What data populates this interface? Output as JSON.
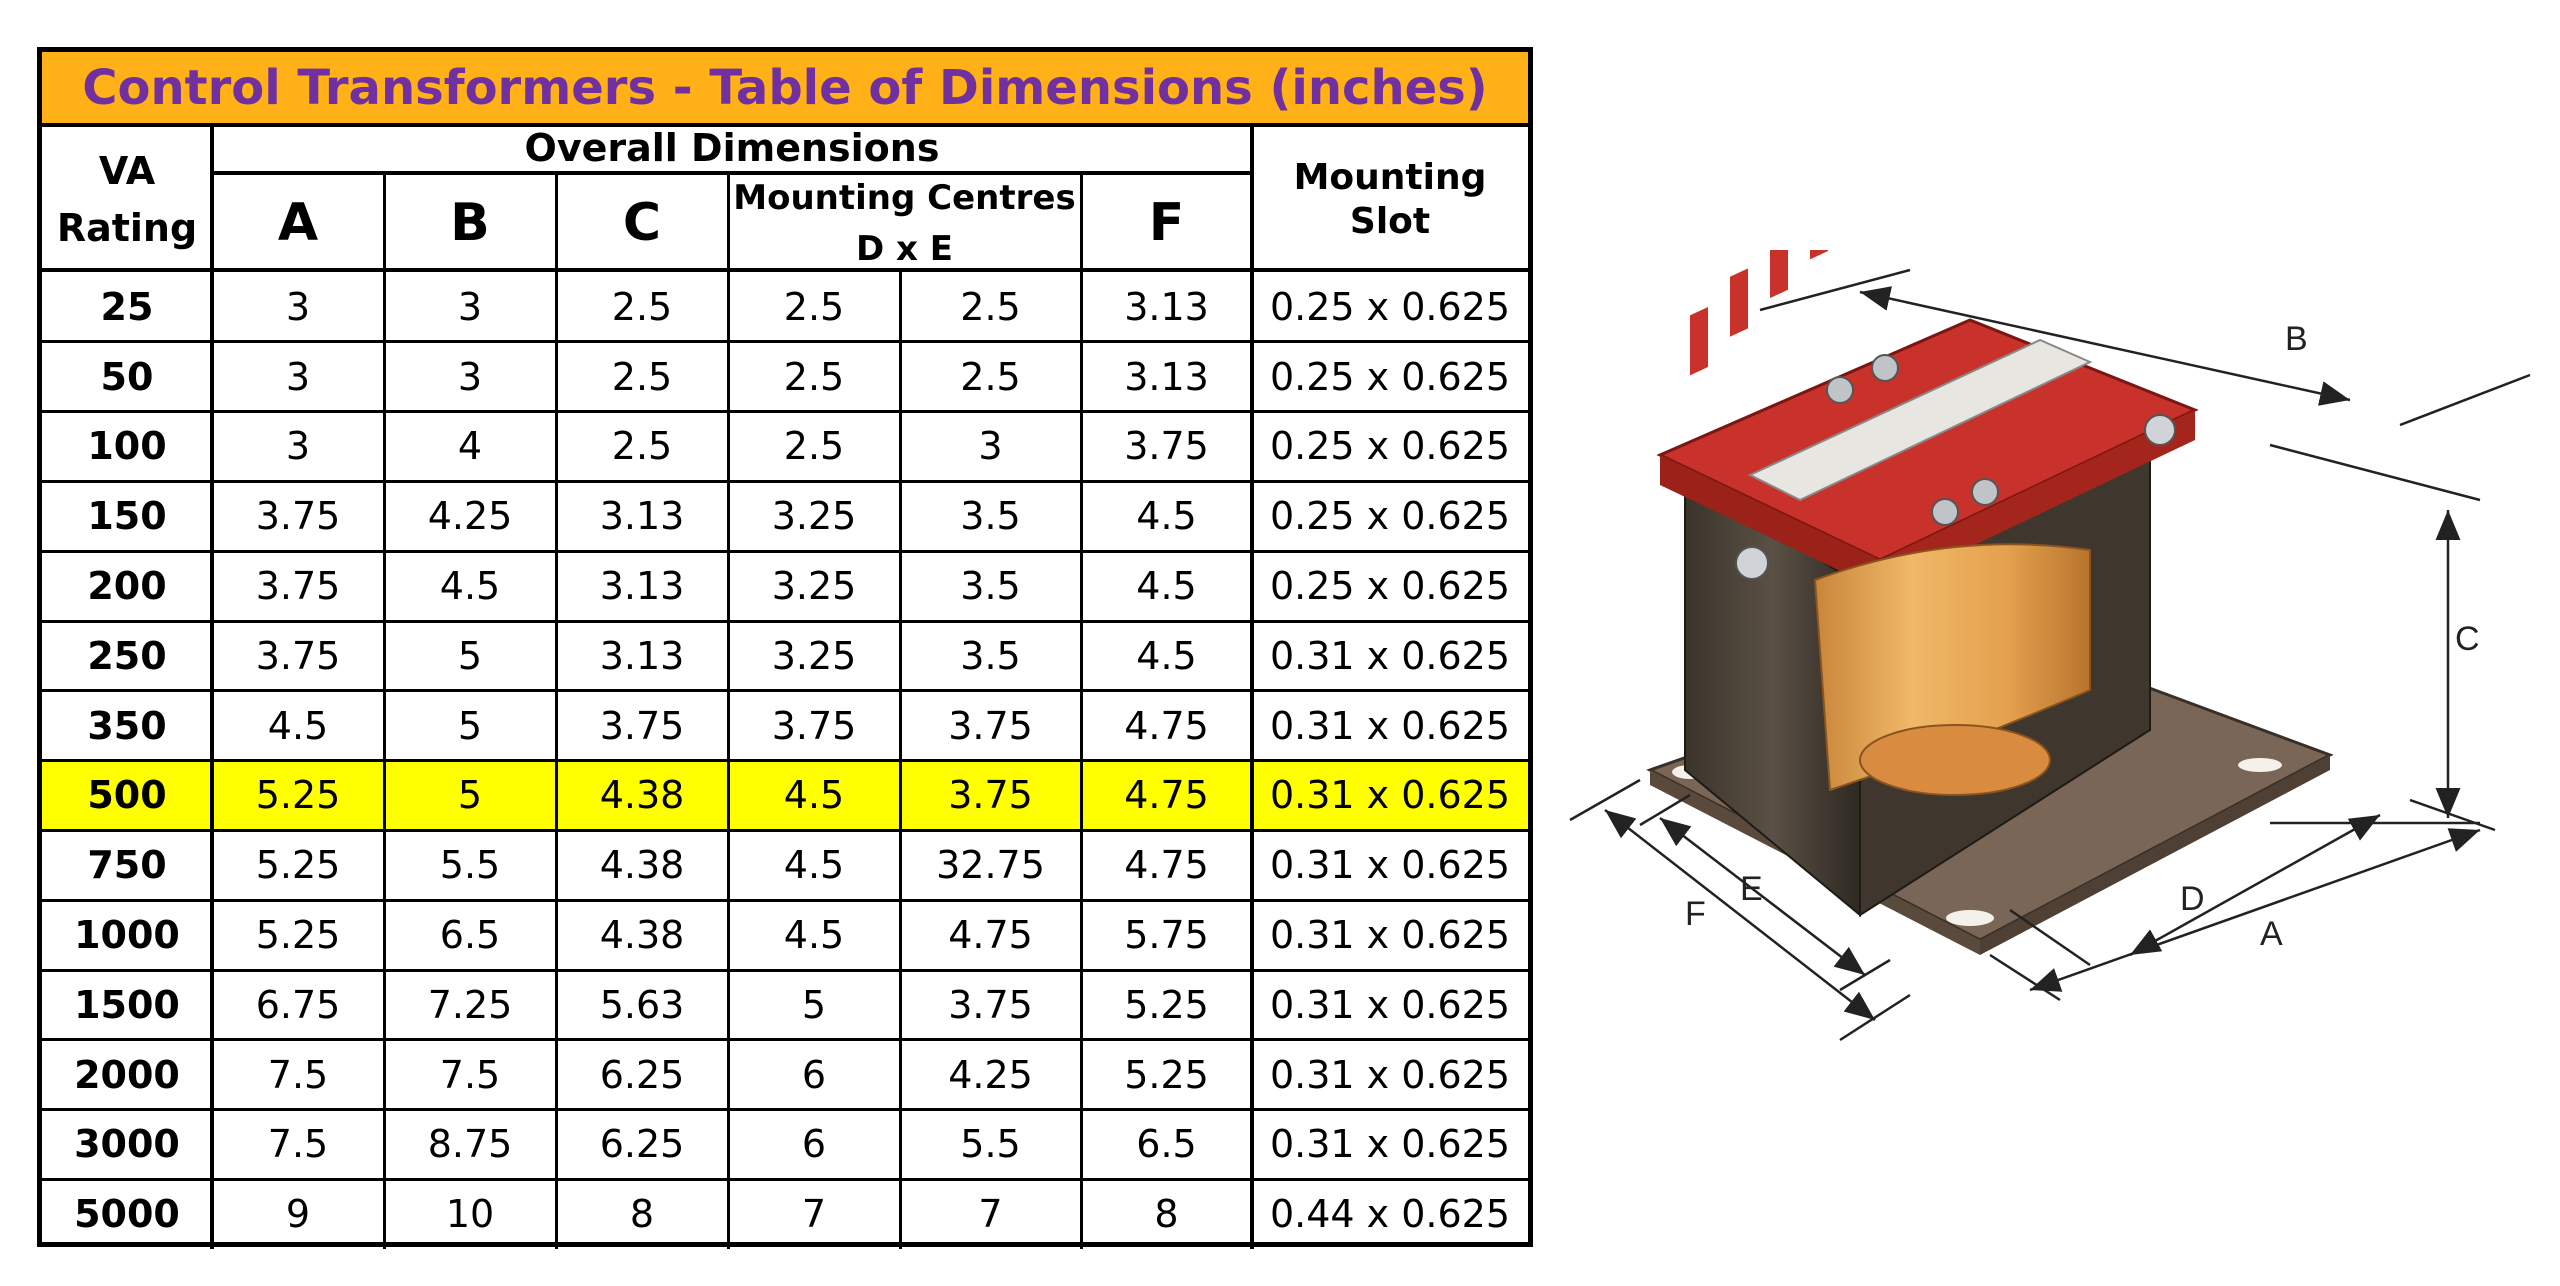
{
  "title": "Control Transformers - Table of Dimensions (inches)",
  "headers": {
    "va_rating_line1": "VA",
    "va_rating_line2": "Rating",
    "overall": "Overall Dimensions",
    "a": "A",
    "b": "B",
    "c": "C",
    "mounting_centres_line1": "Mounting Centres",
    "mounting_centres_line2": "D x E",
    "f": "F",
    "mounting_slot": "Mounting Slot"
  },
  "rows": [
    [
      "25",
      "3",
      "3",
      "2.5",
      "2.5",
      "2.5",
      "3.13",
      "0.25 x 0.625"
    ],
    [
      "50",
      "3",
      "3",
      "2.5",
      "2.5",
      "2.5",
      "3.13",
      "0.25 x 0.625"
    ],
    [
      "100",
      "3",
      "4",
      "2.5",
      "2.5",
      "3",
      "3.75",
      "0.25 x 0.625"
    ],
    [
      "150",
      "3.75",
      "4.25",
      "3.13",
      "3.25",
      "3.5",
      "4.5",
      "0.25 x 0.625"
    ],
    [
      "200",
      "3.75",
      "4.5",
      "3.13",
      "3.25",
      "3.5",
      "4.5",
      "0.25 x 0.625"
    ],
    [
      "250",
      "3.75",
      "5",
      "3.13",
      "3.25",
      "3.5",
      "4.5",
      "0.31 x 0.625"
    ],
    [
      "350",
      "4.5",
      "5",
      "3.75",
      "3.75",
      "3.75",
      "4.75",
      "0.31 x 0.625"
    ],
    [
      "500",
      "5.25",
      "5",
      "4.38",
      "4.5",
      "3.75",
      "4.75",
      "0.31 x 0.625"
    ],
    [
      "750",
      "5.25",
      "5.5",
      "4.38",
      "4.5",
      "32.75",
      "4.75",
      "0.31 x 0.625"
    ],
    [
      "1000",
      "5.25",
      "6.5",
      "4.38",
      "4.5",
      "4.75",
      "5.75",
      "0.31 x 0.625"
    ],
    [
      "1500",
      "6.75",
      "7.25",
      "5.63",
      "5",
      "3.75",
      "5.25",
      "0.31 x 0.625"
    ],
    [
      "2000",
      "7.5",
      "7.5",
      "6.25",
      "6",
      "4.25",
      "5.25",
      "0.31 x 0.625"
    ],
    [
      "3000",
      "7.5",
      "8.75",
      "6.25",
      "6",
      "5.5",
      "6.5",
      "0.31 x 0.625"
    ],
    [
      "5000",
      "9",
      "10",
      "8",
      "7",
      "7",
      "8",
      "0.44 x 0.625"
    ]
  ],
  "highlight_row_index": 7,
  "colors": {
    "title_bg": "#ffb117",
    "title_text": "#7030a0",
    "highlight": "#ffff00"
  },
  "diagram_labels": {
    "a": "A",
    "b": "B",
    "c": "C",
    "d": "D",
    "e": "E",
    "f": "F"
  }
}
